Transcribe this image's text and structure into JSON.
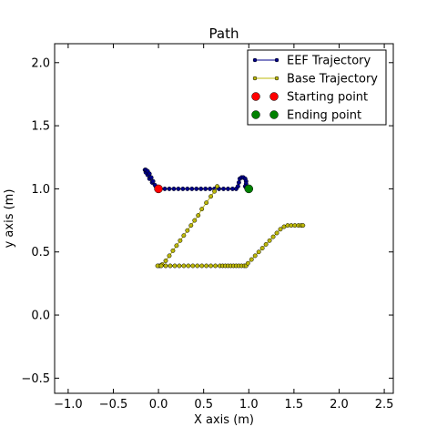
{
  "chart_data": {
    "type": "line",
    "title": "Path",
    "xlabel": "X axis (m)",
    "ylabel": "y axis (m)",
    "xlim": [
      -1.15,
      2.6
    ],
    "ylim": [
      -0.62,
      2.15
    ],
    "xticks": [
      -1.0,
      -0.5,
      0.0,
      0.5,
      1.0,
      1.5,
      2.0,
      2.5
    ],
    "xtick_labels": [
      "−1.0",
      "−0.5",
      "0.0",
      "0.5",
      "1.0",
      "1.5",
      "2.0",
      "2.5"
    ],
    "yticks": [
      -0.5,
      0.0,
      0.5,
      1.0,
      1.5,
      2.0
    ],
    "ytick_labels": [
      "−0.5",
      "0.0",
      "0.5",
      "1.0",
      "1.5",
      "2.0"
    ],
    "grid": false,
    "legend_position": "top-right",
    "series": [
      {
        "name": "EEF Trajectory",
        "color": "#00008b",
        "marker": "dot",
        "x": [
          0.0,
          -0.03,
          -0.07,
          -0.1,
          -0.12,
          -0.14,
          -0.15,
          -0.14,
          -0.12,
          -0.1,
          -0.08,
          -0.06,
          -0.04,
          -0.02,
          0.02,
          0.07,
          0.12,
          0.17,
          0.22,
          0.27,
          0.32,
          0.37,
          0.42,
          0.47,
          0.52,
          0.57,
          0.62,
          0.67,
          0.72,
          0.77,
          0.82,
          0.86,
          0.88,
          0.89,
          0.9,
          0.92,
          0.94,
          0.96,
          0.97,
          0.97,
          0.96,
          0.97,
          0.99,
          1.0
        ],
        "y": [
          1.0,
          1.02,
          1.05,
          1.08,
          1.11,
          1.13,
          1.15,
          1.15,
          1.14,
          1.12,
          1.09,
          1.06,
          1.03,
          1.0,
          1.0,
          1.0,
          1.0,
          1.0,
          1.0,
          1.0,
          1.0,
          1.0,
          1.0,
          1.0,
          1.0,
          1.0,
          1.0,
          1.0,
          1.0,
          1.0,
          1.0,
          1.0,
          1.02,
          1.05,
          1.08,
          1.09,
          1.09,
          1.08,
          1.06,
          1.04,
          1.02,
          1.01,
          1.0,
          1.0
        ]
      },
      {
        "name": "Base Trajectory",
        "color": "#bdb80a",
        "marker": "dot",
        "x": [
          0.65,
          0.62,
          0.58,
          0.53,
          0.48,
          0.44,
          0.4,
          0.36,
          0.32,
          0.28,
          0.24,
          0.2,
          0.16,
          0.12,
          0.08,
          0.04,
          0.01,
          -0.01,
          0.03,
          0.08,
          0.13,
          0.18,
          0.23,
          0.28,
          0.33,
          0.38,
          0.43,
          0.48,
          0.53,
          0.58,
          0.63,
          0.68,
          0.71,
          0.74,
          0.77,
          0.8,
          0.83,
          0.86,
          0.89,
          0.92,
          0.95,
          0.97,
          0.99,
          1.03,
          1.07,
          1.11,
          1.15,
          1.19,
          1.23,
          1.27,
          1.31,
          1.35,
          1.39,
          1.43,
          1.47,
          1.51,
          1.55,
          1.58,
          1.6
        ],
        "y": [
          1.02,
          0.98,
          0.94,
          0.89,
          0.84,
          0.79,
          0.75,
          0.71,
          0.67,
          0.63,
          0.59,
          0.55,
          0.51,
          0.47,
          0.43,
          0.4,
          0.39,
          0.39,
          0.39,
          0.39,
          0.39,
          0.39,
          0.39,
          0.39,
          0.39,
          0.39,
          0.39,
          0.39,
          0.39,
          0.39,
          0.39,
          0.39,
          0.39,
          0.39,
          0.39,
          0.39,
          0.39,
          0.39,
          0.39,
          0.39,
          0.39,
          0.39,
          0.41,
          0.44,
          0.47,
          0.5,
          0.53,
          0.56,
          0.59,
          0.62,
          0.65,
          0.68,
          0.7,
          0.71,
          0.71,
          0.71,
          0.71,
          0.71,
          0.71
        ]
      }
    ],
    "points": [
      {
        "name": "Starting point",
        "color": "#ff0000",
        "x": 0.0,
        "y": 1.0
      },
      {
        "name": "Ending point",
        "color": "#008000",
        "x": 1.0,
        "y": 1.0
      }
    ]
  }
}
